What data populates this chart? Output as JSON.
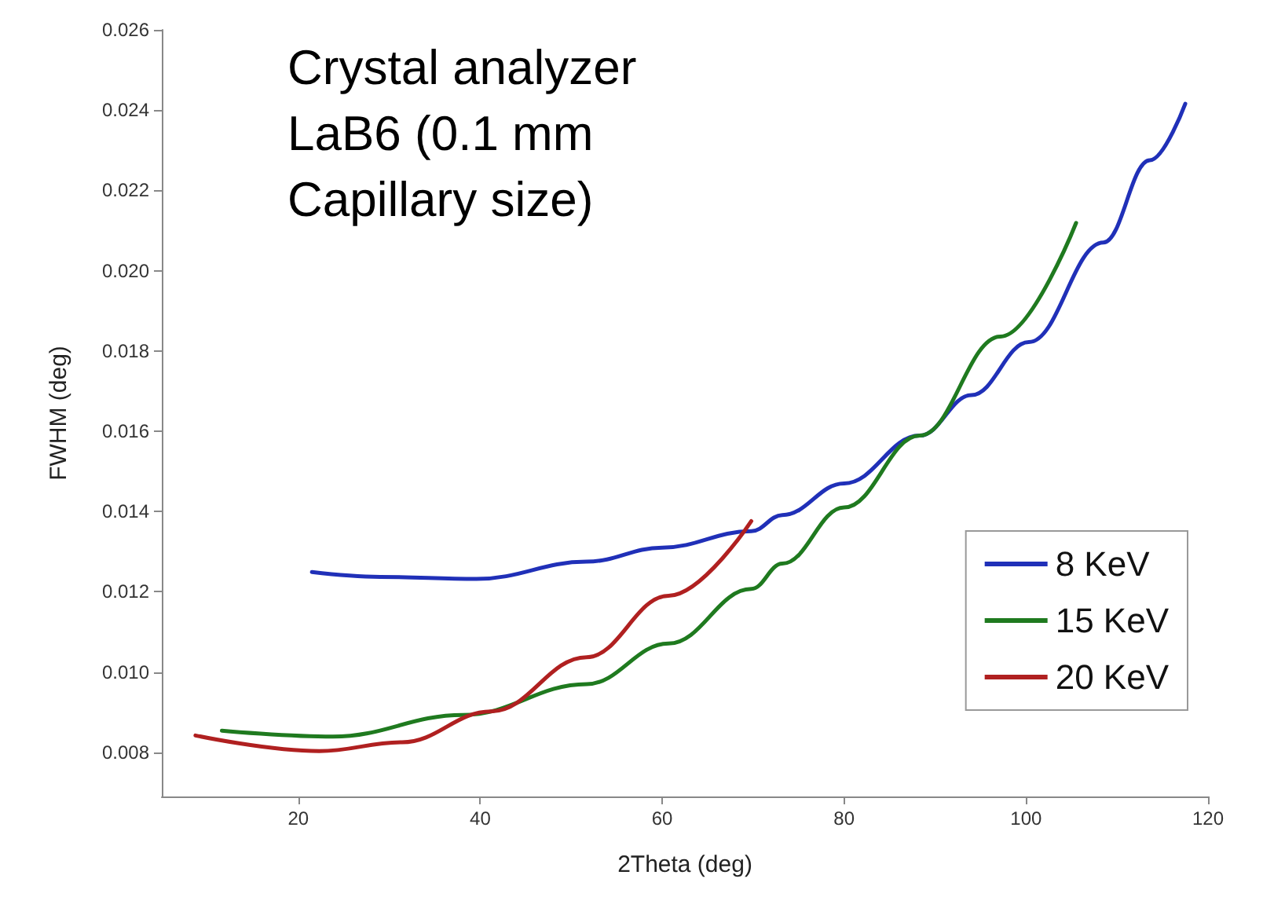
{
  "chart_data": {
    "type": "line",
    "xlabel": "2Theta (deg)",
    "ylabel": "FWHM (deg)",
    "annotations": [
      "Crystal analyzer\nLaB6 (0.1 mm\nCapillary size)"
    ],
    "xlim": [
      5,
      120
    ],
    "xticks": [
      20,
      40,
      60,
      80,
      100,
      120
    ],
    "ylim": [
      0.0069,
      0.026
    ],
    "yticks": [
      {
        "value": 0.008,
        "label": "0.008"
      },
      {
        "value": 0.01,
        "label": "0.010"
      },
      {
        "value": 0.012,
        "label": "0.012"
      },
      {
        "value": 0.014,
        "label": "0.014"
      },
      {
        "value": 0.016,
        "label": "0.016"
      },
      {
        "value": 0.018,
        "label": "0.018"
      },
      {
        "value": 0.02,
        "label": "0.020"
      },
      {
        "value": 0.022,
        "label": "0.022"
      },
      {
        "value": 0.024,
        "label": "0.024"
      },
      {
        "value": 0.026,
        "label": "0.026"
      }
    ],
    "grid": false,
    "legend": "right",
    "marker": "none",
    "line_style": "solid",
    "series": [
      {
        "name": "8 KeV",
        "color": "#2030b8",
        "x": [
          21.5,
          29,
          39.6,
          51.7,
          60,
          69.8,
          73.2,
          80,
          88.3,
          94,
          100.3,
          108.5,
          113.6,
          117.5
        ],
        "values": [
          0.01249,
          0.01237,
          0.01232,
          0.01275,
          0.0131,
          0.01351,
          0.01391,
          0.0147,
          0.01589,
          0.0169,
          0.01822,
          0.0207,
          0.02275,
          0.02416
        ]
      },
      {
        "name": "15 KeV",
        "color": "#1f7a1f",
        "x": [
          11.6,
          23.8,
          38.1,
          51.7,
          60.7,
          69.8,
          73.2,
          80,
          88.3,
          97.2,
          105.5
        ],
        "values": [
          0.00854,
          0.00839,
          0.00893,
          0.0097,
          0.01071,
          0.01207,
          0.0127,
          0.0141,
          0.01589,
          0.01836,
          0.02119
        ]
      },
      {
        "name": "20 KeV",
        "color": "#b02020",
        "x": [
          8.7,
          22.3,
          31.4,
          41.2,
          51.7,
          60.7,
          69.8
        ],
        "values": [
          0.00842,
          0.00803,
          0.00825,
          0.00902,
          0.01037,
          0.0119,
          0.01376
        ]
      }
    ]
  }
}
